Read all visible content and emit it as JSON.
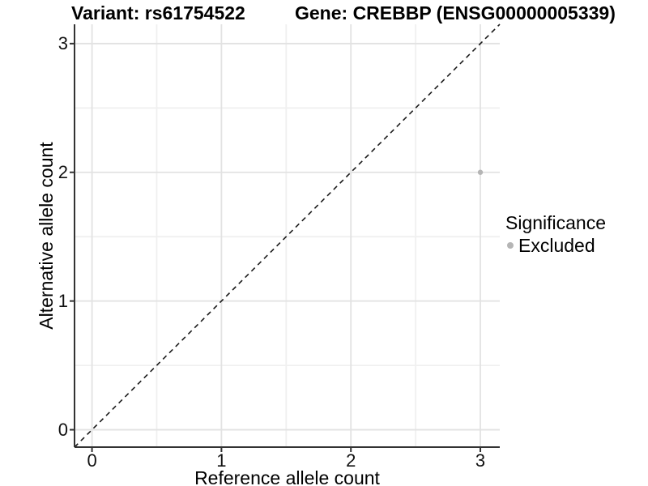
{
  "chart_data": {
    "type": "scatter",
    "titles": {
      "left": "Variant: rs61754522",
      "right": "Gene: CREBBP (ENSG00000005339)"
    },
    "xlabel": "Reference allele count",
    "ylabel": "Alternative allele count",
    "xlim": [
      -0.135,
      3.15
    ],
    "ylim": [
      -0.135,
      3.15
    ],
    "x_ticks": [
      0,
      1,
      2,
      3
    ],
    "y_ticks": [
      0,
      1,
      2,
      3
    ],
    "x_minor_ticks": [
      0.5,
      1.5,
      2.5
    ],
    "y_minor_ticks": [
      0.5,
      1.5,
      2.5
    ],
    "grid": "major+minor",
    "identity_line": {
      "slope": 1,
      "intercept": 0,
      "style": "dashed",
      "color": "#1a1a1a"
    },
    "series": [
      {
        "name": "Excluded",
        "color": "#b5b5b5",
        "points": [
          {
            "x": 3,
            "y": 2
          }
        ]
      }
    ],
    "legend": {
      "title": "Significance",
      "position": "right",
      "entries": [
        {
          "label": "Excluded",
          "color": "#b5b5b5"
        }
      ]
    }
  },
  "colors": {
    "background": "#ffffff",
    "grid_major": "#e2e2e2",
    "grid_minor": "#f0f0f0",
    "axis_line": "#333333",
    "tick_mark": "#333333",
    "text": "#000000"
  }
}
